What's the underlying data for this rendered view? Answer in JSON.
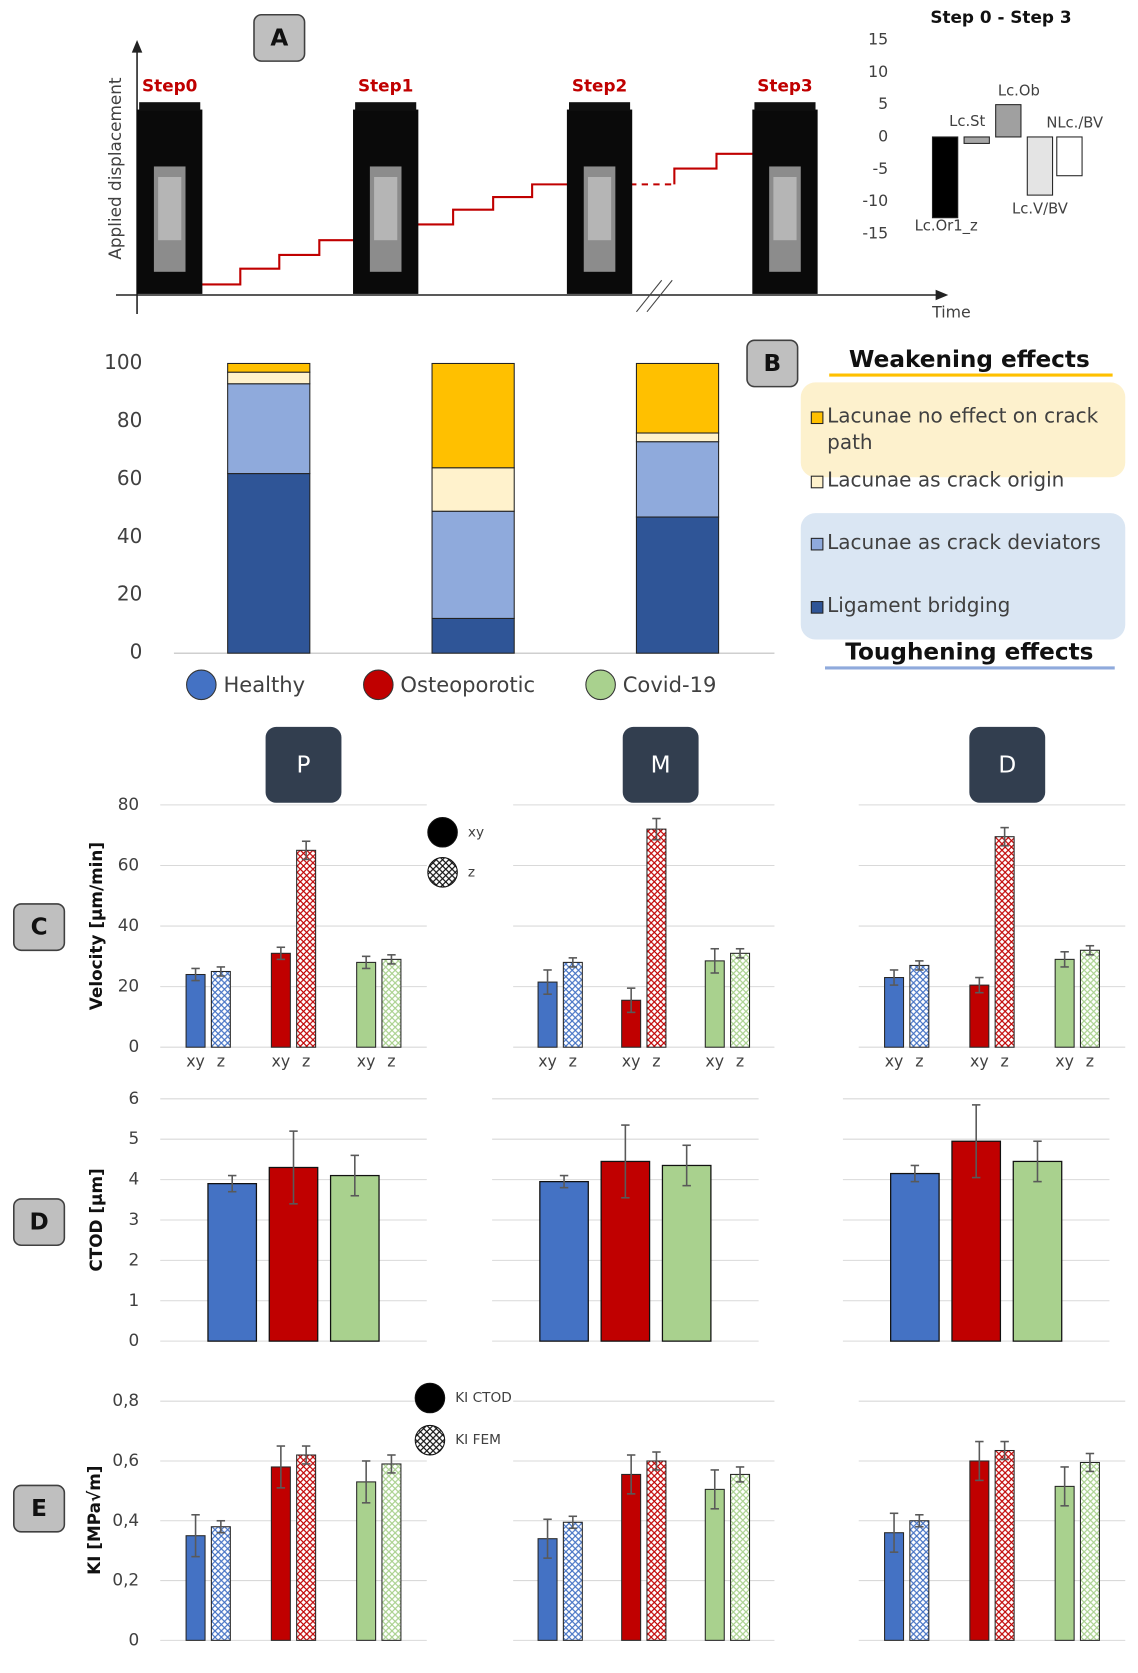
{
  "chart_data": [
    {
      "type": "schematic",
      "panel": "A",
      "steps": [
        "Step0",
        "Step1",
        "Step2",
        "Step3"
      ],
      "ylabel": "Applied displacement",
      "xlabel": "Time"
    },
    {
      "type": "waterfall",
      "title": "Step 0 - Step 3",
      "categories": [
        "Lc.Or1_z",
        "Lc.St",
        "Lc.Ob",
        "Lc.V/BV",
        "NLc./BV"
      ],
      "values": [
        -12.5,
        -1,
        5,
        -9,
        -6
      ],
      "colors": [
        "#000000",
        "#a6a6a6",
        "#a0a0a0",
        "#e4e4e4",
        "#ffffff"
      ],
      "ylim": [
        -15,
        15
      ],
      "yticks": [
        -15,
        -10,
        -5,
        0,
        5,
        10,
        15
      ]
    },
    {
      "type": "stacked_bar",
      "panel": "B",
      "categories": [
        "Healthy",
        "Osteoporotic",
        "Covid-19"
      ],
      "category_colors": [
        "#4472c4",
        "#c00000",
        "#a9d18e"
      ],
      "series": [
        {
          "name": "Ligament bridging",
          "color": "#2f5597",
          "values": [
            62,
            12,
            47
          ]
        },
        {
          "name": "Lacunae as crack deviators",
          "color": "#8faadc",
          "values": [
            31,
            37,
            26
          ]
        },
        {
          "name": "Lacunae as crack origin",
          "color": "#fff2cc",
          "values": [
            4,
            15,
            3
          ]
        },
        {
          "name": "Lacunae no effect on crack path",
          "color": "#ffc000",
          "values": [
            3,
            36,
            24
          ]
        }
      ],
      "weakening_title": "Weakening effects",
      "toughening_title": "Toughening effects",
      "ylim": [
        0,
        100
      ],
      "yticks": [
        0,
        20,
        40,
        60,
        80,
        100
      ]
    },
    {
      "type": "grouped_bar",
      "panel": "C",
      "header": "P",
      "ylabel": "Velocity [μm/min]",
      "legend": true,
      "colors": [
        "#4472c4",
        "#c00000",
        "#a9d18e"
      ],
      "ylim": [
        0,
        80
      ],
      "yticks": [
        0,
        20,
        40,
        60,
        80
      ],
      "series": [
        {
          "name": "xy",
          "pattern": "solid",
          "values": [
            24,
            31,
            28
          ],
          "errors": [
            2,
            2,
            2
          ]
        },
        {
          "name": "z",
          "pattern": "crosshatch",
          "values": [
            25,
            65,
            29
          ],
          "errors": [
            1.5,
            3,
            1.5
          ]
        }
      ]
    },
    {
      "type": "grouped_bar",
      "header": "M",
      "colors": [
        "#4472c4",
        "#c00000",
        "#a9d18e"
      ],
      "ylim": [
        0,
        80
      ],
      "yticks": [
        0,
        20,
        40,
        60,
        80
      ],
      "series": [
        {
          "name": "xy",
          "pattern": "solid",
          "values": [
            21.5,
            15.5,
            28.5
          ],
          "errors": [
            4,
            4,
            4
          ]
        },
        {
          "name": "z",
          "pattern": "crosshatch",
          "values": [
            28,
            72,
            31
          ],
          "errors": [
            1.5,
            3.5,
            1.5
          ]
        }
      ]
    },
    {
      "type": "grouped_bar",
      "header": "D",
      "colors": [
        "#4472c4",
        "#c00000",
        "#a9d18e"
      ],
      "ylim": [
        0,
        80
      ],
      "yticks": [
        0,
        20,
        40,
        60,
        80
      ],
      "series": [
        {
          "name": "xy",
          "pattern": "solid",
          "values": [
            23,
            20.5,
            29
          ],
          "errors": [
            2.5,
            2.5,
            2.5
          ]
        },
        {
          "name": "z",
          "pattern": "crosshatch",
          "values": [
            27,
            69.5,
            32
          ],
          "errors": [
            1.5,
            3,
            1.5
          ]
        }
      ]
    },
    {
      "type": "bar",
      "panel": "D",
      "ylabel": "CTOD [μm]",
      "colors": [
        "#4472c4",
        "#c00000",
        "#a9d18e"
      ],
      "values": [
        3.9,
        4.3,
        4.1
      ],
      "errors": [
        0.2,
        0.9,
        0.5
      ],
      "ylim": [
        0,
        6
      ],
      "yticks": [
        0,
        1,
        2,
        3,
        4,
        5,
        6
      ]
    },
    {
      "type": "bar",
      "colors": [
        "#4472c4",
        "#c00000",
        "#a9d18e"
      ],
      "values": [
        3.95,
        4.45,
        4.35
      ],
      "errors": [
        0.15,
        0.9,
        0.5
      ],
      "ylim": [
        0,
        6
      ],
      "yticks": [
        0,
        1,
        2,
        3,
        4,
        5,
        6
      ]
    },
    {
      "type": "bar",
      "colors": [
        "#4472c4",
        "#c00000",
        "#a9d18e"
      ],
      "values": [
        4.15,
        4.95,
        4.45
      ],
      "errors": [
        0.2,
        0.9,
        0.5
      ],
      "ylim": [
        0,
        6
      ],
      "yticks": [
        0,
        1,
        2,
        3,
        4,
        5,
        6
      ]
    },
    {
      "type": "grouped_bar",
      "panel": "E",
      "ylabel": "KI [MPa√m]",
      "legend": true,
      "colors": [
        "#4472c4",
        "#c00000",
        "#a9d18e"
      ],
      "ylim": [
        0,
        0.8
      ],
      "yticks": [
        0,
        {
          "value": 0.2,
          "label": "0,2"
        },
        {
          "value": 0.4,
          "label": "0,4"
        },
        {
          "value": 0.6,
          "label": "0,6"
        },
        {
          "value": 0.8,
          "label": "0,8"
        }
      ],
      "series": [
        {
          "name": "KI CTOD",
          "pattern": "solid",
          "values": [
            0.35,
            0.58,
            0.53
          ],
          "errors": [
            0.07,
            0.07,
            0.07
          ]
        },
        {
          "name": "KI FEM",
          "pattern": "crosshatch",
          "values": [
            0.38,
            0.62,
            0.59
          ],
          "errors": [
            0.02,
            0.03,
            0.03
          ]
        }
      ]
    },
    {
      "type": "grouped_bar",
      "colors": [
        "#4472c4",
        "#c00000",
        "#a9d18e"
      ],
      "ylim": [
        0,
        0.8
      ],
      "yticks": [
        0,
        {
          "value": 0.2,
          "label": "0,2"
        },
        {
          "value": 0.4,
          "label": "0,4"
        },
        {
          "value": 0.6,
          "label": "0,6"
        },
        {
          "value": 0.8,
          "label": "0,8"
        }
      ],
      "series": [
        {
          "name": "KI CTOD",
          "pattern": "solid",
          "values": [
            0.34,
            0.555,
            0.505
          ],
          "errors": [
            0.065,
            0.065,
            0.065
          ]
        },
        {
          "name": "KI FEM",
          "pattern": "crosshatch",
          "values": [
            0.395,
            0.6,
            0.555
          ],
          "errors": [
            0.02,
            0.03,
            0.025
          ]
        }
      ]
    },
    {
      "type": "grouped_bar",
      "colors": [
        "#4472c4",
        "#c00000",
        "#a9d18e"
      ],
      "ylim": [
        0,
        0.8
      ],
      "yticks": [
        0,
        {
          "value": 0.2,
          "label": "0,2"
        },
        {
          "value": 0.4,
          "label": "0,4"
        },
        {
          "value": 0.6,
          "label": "0,6"
        },
        {
          "value": 0.8,
          "label": "0,8"
        }
      ],
      "series": [
        {
          "name": "KI CTOD",
          "pattern": "solid",
          "values": [
            0.36,
            0.6,
            0.515
          ],
          "errors": [
            0.065,
            0.065,
            0.065
          ]
        },
        {
          "name": "KI FEM",
          "pattern": "crosshatch",
          "values": [
            0.4,
            0.635,
            0.595
          ],
          "errors": [
            0.02,
            0.03,
            0.03
          ]
        }
      ]
    }
  ]
}
